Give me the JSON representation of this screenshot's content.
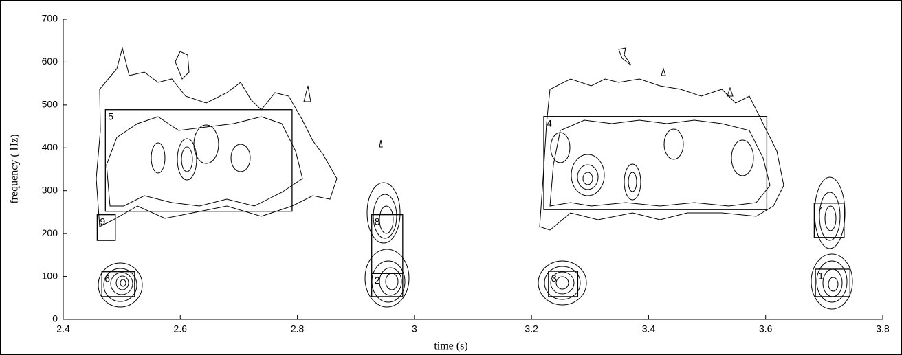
{
  "chart_data": {
    "type": "contour",
    "xlabel": "time (s)",
    "ylabel": "frequency ( Hz)",
    "xlim": [
      2.4,
      3.8
    ],
    "ylim": [
      0,
      700
    ],
    "xticks": [
      2.4,
      2.6,
      2.8,
      3,
      3.2,
      3.4,
      3.6,
      3.8
    ],
    "yticks": [
      0,
      100,
      200,
      300,
      400,
      500,
      600,
      700
    ],
    "regions": [
      {
        "label": "1",
        "x": [
          3.685,
          3.744
        ],
        "y": [
          53,
          117
        ]
      },
      {
        "label": "2",
        "x": [
          2.927,
          2.98
        ],
        "y": [
          53,
          107
        ]
      },
      {
        "label": "3",
        "x": [
          3.229,
          3.279
        ],
        "y": [
          53,
          112
        ]
      },
      {
        "label": "4",
        "x": [
          3.221,
          3.602
        ],
        "y": [
          256,
          473
        ]
      },
      {
        "label": "5",
        "x": [
          2.472,
          2.791
        ],
        "y": [
          252,
          489
        ]
      },
      {
        "label": "6",
        "x": [
          2.466,
          2.522
        ],
        "y": [
          53,
          111
        ]
      },
      {
        "label": "7",
        "x": [
          3.683,
          3.734
        ],
        "y": [
          191,
          271
        ]
      },
      {
        "label": "8",
        "x": [
          2.927,
          2.98
        ],
        "y": [
          107,
          244
        ]
      },
      {
        "label": "9",
        "x": [
          2.458,
          2.489
        ],
        "y": [
          184,
          244
        ]
      }
    ]
  }
}
